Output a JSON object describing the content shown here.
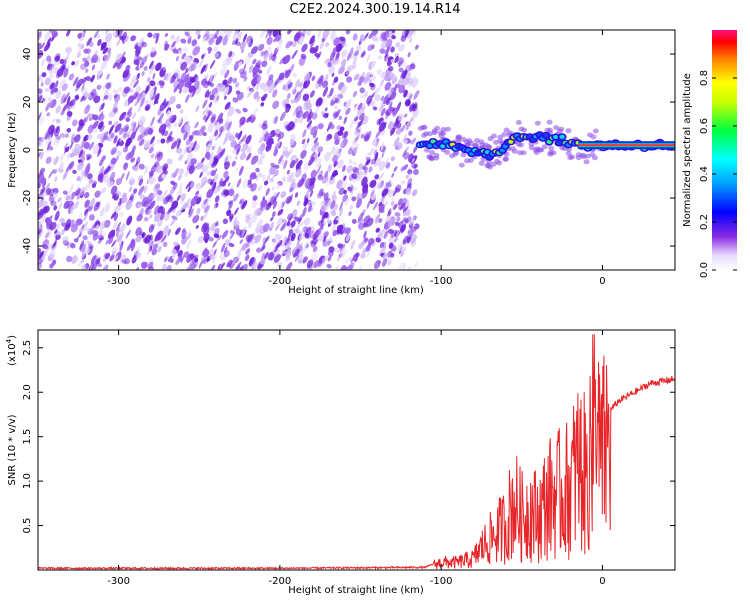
{
  "title": "C2E2.2024.300.19.14.R14",
  "colors": {
    "snr_line": "#e8262a",
    "noise_dark": "#6a1fd6",
    "noise_light": "#cdb4f5"
  },
  "chart_data": [
    {
      "type": "heatmap",
      "xlabel": "Height of straight line (km)",
      "ylabel": "Frequency (Hz)",
      "xlim": [
        -350,
        45
      ],
      "ylim": [
        -50,
        50
      ],
      "xticks": [
        -300,
        -200,
        -100,
        0
      ],
      "yticks": [
        -40,
        -20,
        0,
        20,
        40
      ],
      "noise_region": {
        "x_from": -350,
        "x_to": -115
      },
      "signal_ridge": [
        {
          "x": -113,
          "y": 3.5
        },
        {
          "x": -105,
          "y": 3
        },
        {
          "x": -95,
          "y": 2
        },
        {
          "x": -85,
          "y": -1
        },
        {
          "x": -75,
          "y": 0
        },
        {
          "x": -70,
          "y": -2
        },
        {
          "x": -62,
          "y": 1
        },
        {
          "x": -55,
          "y": 5
        },
        {
          "x": -45,
          "y": 6
        },
        {
          "x": -35,
          "y": 5
        },
        {
          "x": -25,
          "y": 4
        },
        {
          "x": -15,
          "y": 2
        },
        {
          "x": -5,
          "y": 2
        },
        {
          "x": 10,
          "y": 2
        },
        {
          "x": 30,
          "y": 2
        },
        {
          "x": 45,
          "y": 2
        }
      ],
      "colorbar": {
        "label": "Normalized spectral amplitude",
        "range": [
          0.0,
          1.0
        ],
        "ticks": [
          0.0,
          0.2,
          0.4,
          0.6,
          0.8
        ]
      }
    },
    {
      "type": "line",
      "xlabel": "Height of straight line (km)",
      "ylabel": "SNR (10 * v/v)",
      "y_multiplier": "(x10",
      "y_multiplier_exp": "4",
      "y_multiplier_close": ")",
      "xlim": [
        -350,
        45
      ],
      "ylim": [
        0,
        2.7
      ],
      "xticks": [
        -300,
        -200,
        -100,
        0
      ],
      "yticks": [
        0.5,
        1.0,
        1.5,
        2.0,
        2.5
      ],
      "series": [
        {
          "x": [
            -350,
            -300,
            -200,
            -110,
            -100,
            -90,
            -80,
            -75,
            -70,
            -65,
            -60,
            -55,
            -50,
            -45,
            -40,
            -35,
            -30,
            -25,
            -20,
            -15,
            -10,
            -5,
            0,
            5,
            10,
            20,
            30,
            45
          ],
          "y": [
            0.02,
            0.02,
            0.02,
            0.03,
            0.1,
            0.1,
            0.15,
            0.3,
            0.4,
            0.5,
            0.6,
            0.9,
            0.7,
            0.8,
            0.7,
            0.9,
            1.0,
            1.0,
            1.1,
            1.4,
            1.2,
            1.6,
            1.5,
            1.8,
            1.9,
            2.0,
            2.1,
            2.15
          ]
        }
      ]
    }
  ]
}
